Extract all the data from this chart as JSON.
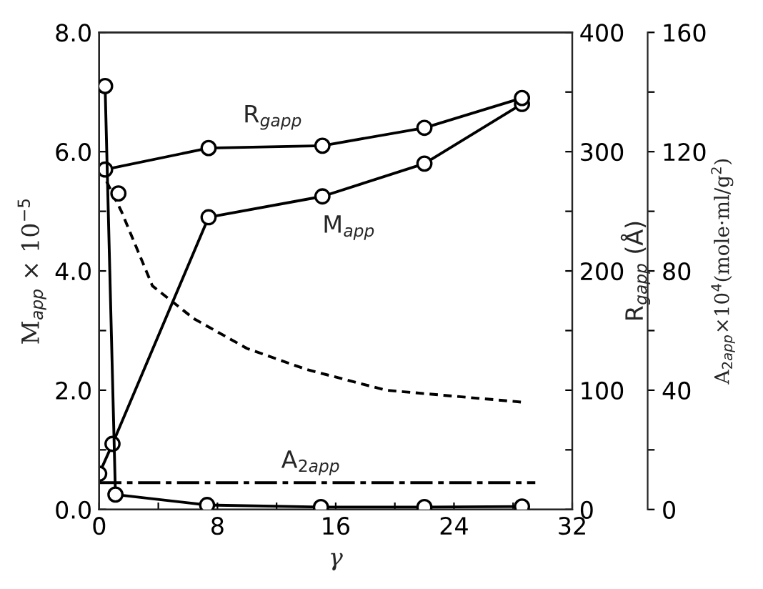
{
  "chart_data": {
    "type": "line",
    "xlabel": "γ",
    "ylabel": "M$_{app}$ × 10$^{−5}$",
    "y2label": "R$_{gapp}$ (Å)",
    "y3label": "A$_{2app}$×10$^{4}$(mole·ml/g$^{2}$)",
    "xlim": [
      0,
      32
    ],
    "xticks": [
      0,
      {
        "value": 4,
        "label": null
      },
      8,
      {
        "value": 12,
        "label": null
      },
      16,
      {
        "value": 20,
        "label": null
      },
      24,
      {
        "value": 28,
        "label": null
      },
      32
    ],
    "ylim": [
      0,
      8
    ],
    "yticks": [
      {
        "value": 0,
        "label": "0.0"
      },
      {
        "value": 1,
        "label": null
      },
      {
        "value": 2,
        "label": "2.0"
      },
      {
        "value": 3,
        "label": null
      },
      {
        "value": 4,
        "label": "4.0"
      },
      {
        "value": 5,
        "label": null
      },
      {
        "value": 6,
        "label": "6.0"
      },
      {
        "value": 7,
        "label": null
      },
      {
        "value": 8,
        "label": "8.0"
      }
    ],
    "y2lim": [
      0,
      400
    ],
    "y2ticks": [
      0,
      {
        "value": 50,
        "label": null
      },
      100,
      {
        "value": 150,
        "label": null
      },
      200,
      {
        "value": 250,
        "label": null
      },
      300,
      {
        "value": 350,
        "label": null
      },
      400
    ],
    "y3lim": [
      0,
      160
    ],
    "y3ticks": [
      0,
      {
        "value": 20,
        "label": null
      },
      40,
      {
        "value": 60,
        "label": null
      },
      80,
      {
        "value": 100,
        "label": null
      },
      120,
      {
        "value": 140,
        "label": null
      },
      160
    ],
    "grid": false,
    "legend": false,
    "series": [
      {
        "name": "M$_{app}$",
        "color": "#000000",
        "marker": "circle",
        "line_style": "solid",
        "x": [
          0,
          0.9,
          7.4,
          15.1,
          22,
          28.6
        ],
        "values": [
          0.6,
          1.1,
          4.9,
          5.25,
          5.8,
          6.8
        ]
      },
      {
        "name": "R$_{gapp}$",
        "color": "#000000",
        "marker": "circle",
        "line_style": "solid",
        "axis": "y2",
        "x": [
          0.4,
          7.4,
          15.1,
          22,
          28.6
        ],
        "values": [
          285,
          303,
          305,
          320,
          345
        ]
      },
      {
        "name": "A$_{2app}$",
        "color": "#000000",
        "marker": "circle",
        "line_style": "solid",
        "axis": "y3",
        "x": [
          0.4,
          1.1,
          7.3,
          15,
          22,
          28.6
        ],
        "values": [
          142,
          5,
          1.5,
          0.8,
          0.8,
          1
        ]
      },
      {
        "color": "#000000",
        "marker": "none",
        "line_style": "dashed",
        "x": [
          0.5,
          1.5,
          3.6,
          6.4,
          10,
          14,
          19.4,
          24,
          28.6
        ],
        "values": [
          5.5,
          5.0,
          3.75,
          3.2,
          2.7,
          2.35,
          2.0,
          1.9,
          1.8
        ]
      },
      {
        "color": "#000000",
        "marker": "circle",
        "type": "scatter",
        "x": [
          1.3
        ],
        "values": [
          5.3
        ]
      },
      {
        "color": "#000000",
        "marker": "none",
        "line_style": "dashdot",
        "x": [
          0,
          29.5
        ],
        "values": [
          0.45,
          0.45
        ]
      }
    ]
  }
}
